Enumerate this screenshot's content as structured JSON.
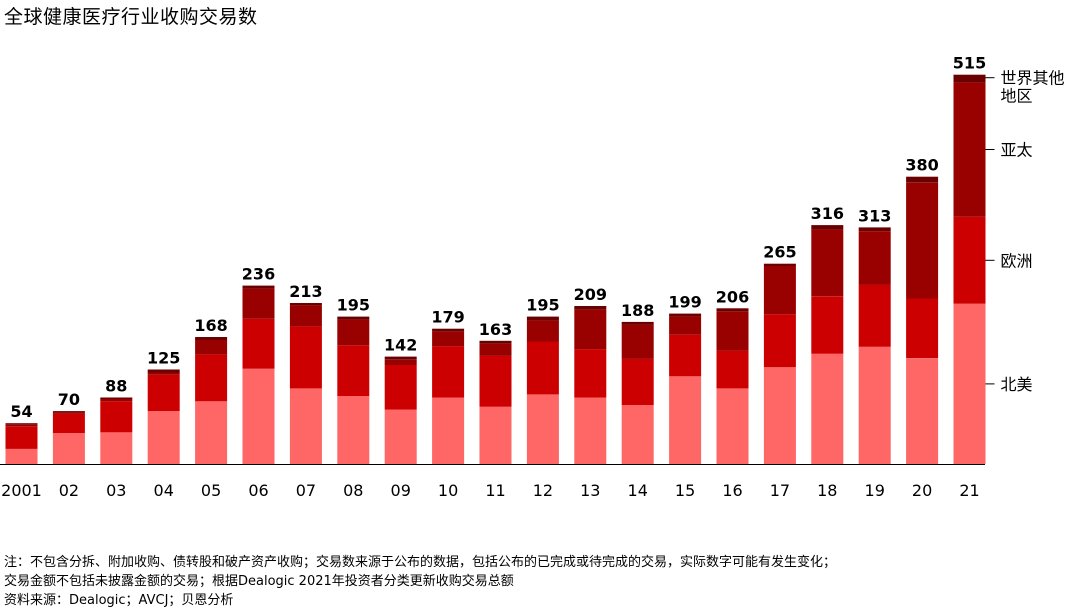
{
  "title": "全球健康医疗行业收购交易数",
  "notes": [
    "注：不包含分拆、附加收购、债转股和破产资产收购；交易数来源于公布的数据，包括公布的已完成或待完成的交易，实际数字可能有发生变化；",
    "交易金额不包括未披露金额的交易；根据Dealogic 2021年投资者分类更新收购交易总额",
    "资料来源：Dealogic；AVCJ；贝恩分析"
  ],
  "chart_data": {
    "type": "bar",
    "stacked": true,
    "title": "全球健康医疗行业收购交易数",
    "categories": [
      "2001",
      "02",
      "03",
      "04",
      "05",
      "06",
      "07",
      "08",
      "09",
      "10",
      "11",
      "12",
      "13",
      "14",
      "15",
      "16",
      "17",
      "18",
      "19",
      "20",
      "21"
    ],
    "totals": [
      54,
      70,
      88,
      125,
      168,
      236,
      213,
      195,
      142,
      179,
      163,
      195,
      209,
      188,
      199,
      206,
      265,
      316,
      313,
      380,
      515
    ],
    "series": [
      {
        "name": "北美",
        "color": "#ff6666",
        "values": [
          20,
          41,
          42,
          70,
          83,
          126,
          100,
          90,
          72,
          88,
          76,
          92,
          88,
          78,
          116,
          100,
          128,
          146,
          155,
          140,
          212
        ]
      },
      {
        "name": "欧洲",
        "color": "#cc0000",
        "values": [
          30,
          26,
          41,
          48,
          62,
          66,
          82,
          67,
          59,
          68,
          67,
          70,
          64,
          61,
          55,
          50,
          70,
          76,
          82,
          79,
          115
        ]
      },
      {
        "name": "亚太",
        "color": "#990000",
        "values": [
          2,
          1,
          3,
          3,
          19,
          40,
          28,
          34,
          7,
          19,
          16,
          28,
          52,
          45,
          24,
          52,
          64,
          88,
          71,
          153,
          178
        ]
      },
      {
        "name": "世界其他地区",
        "color": "#6b0000",
        "values": [
          2,
          2,
          2,
          4,
          4,
          4,
          3,
          4,
          4,
          4,
          4,
          5,
          5,
          4,
          4,
          4,
          3,
          6,
          5,
          8,
          10
        ]
      }
    ],
    "ylim": [
      0,
      530
    ],
    "legend_position": "right",
    "grid": false
  }
}
